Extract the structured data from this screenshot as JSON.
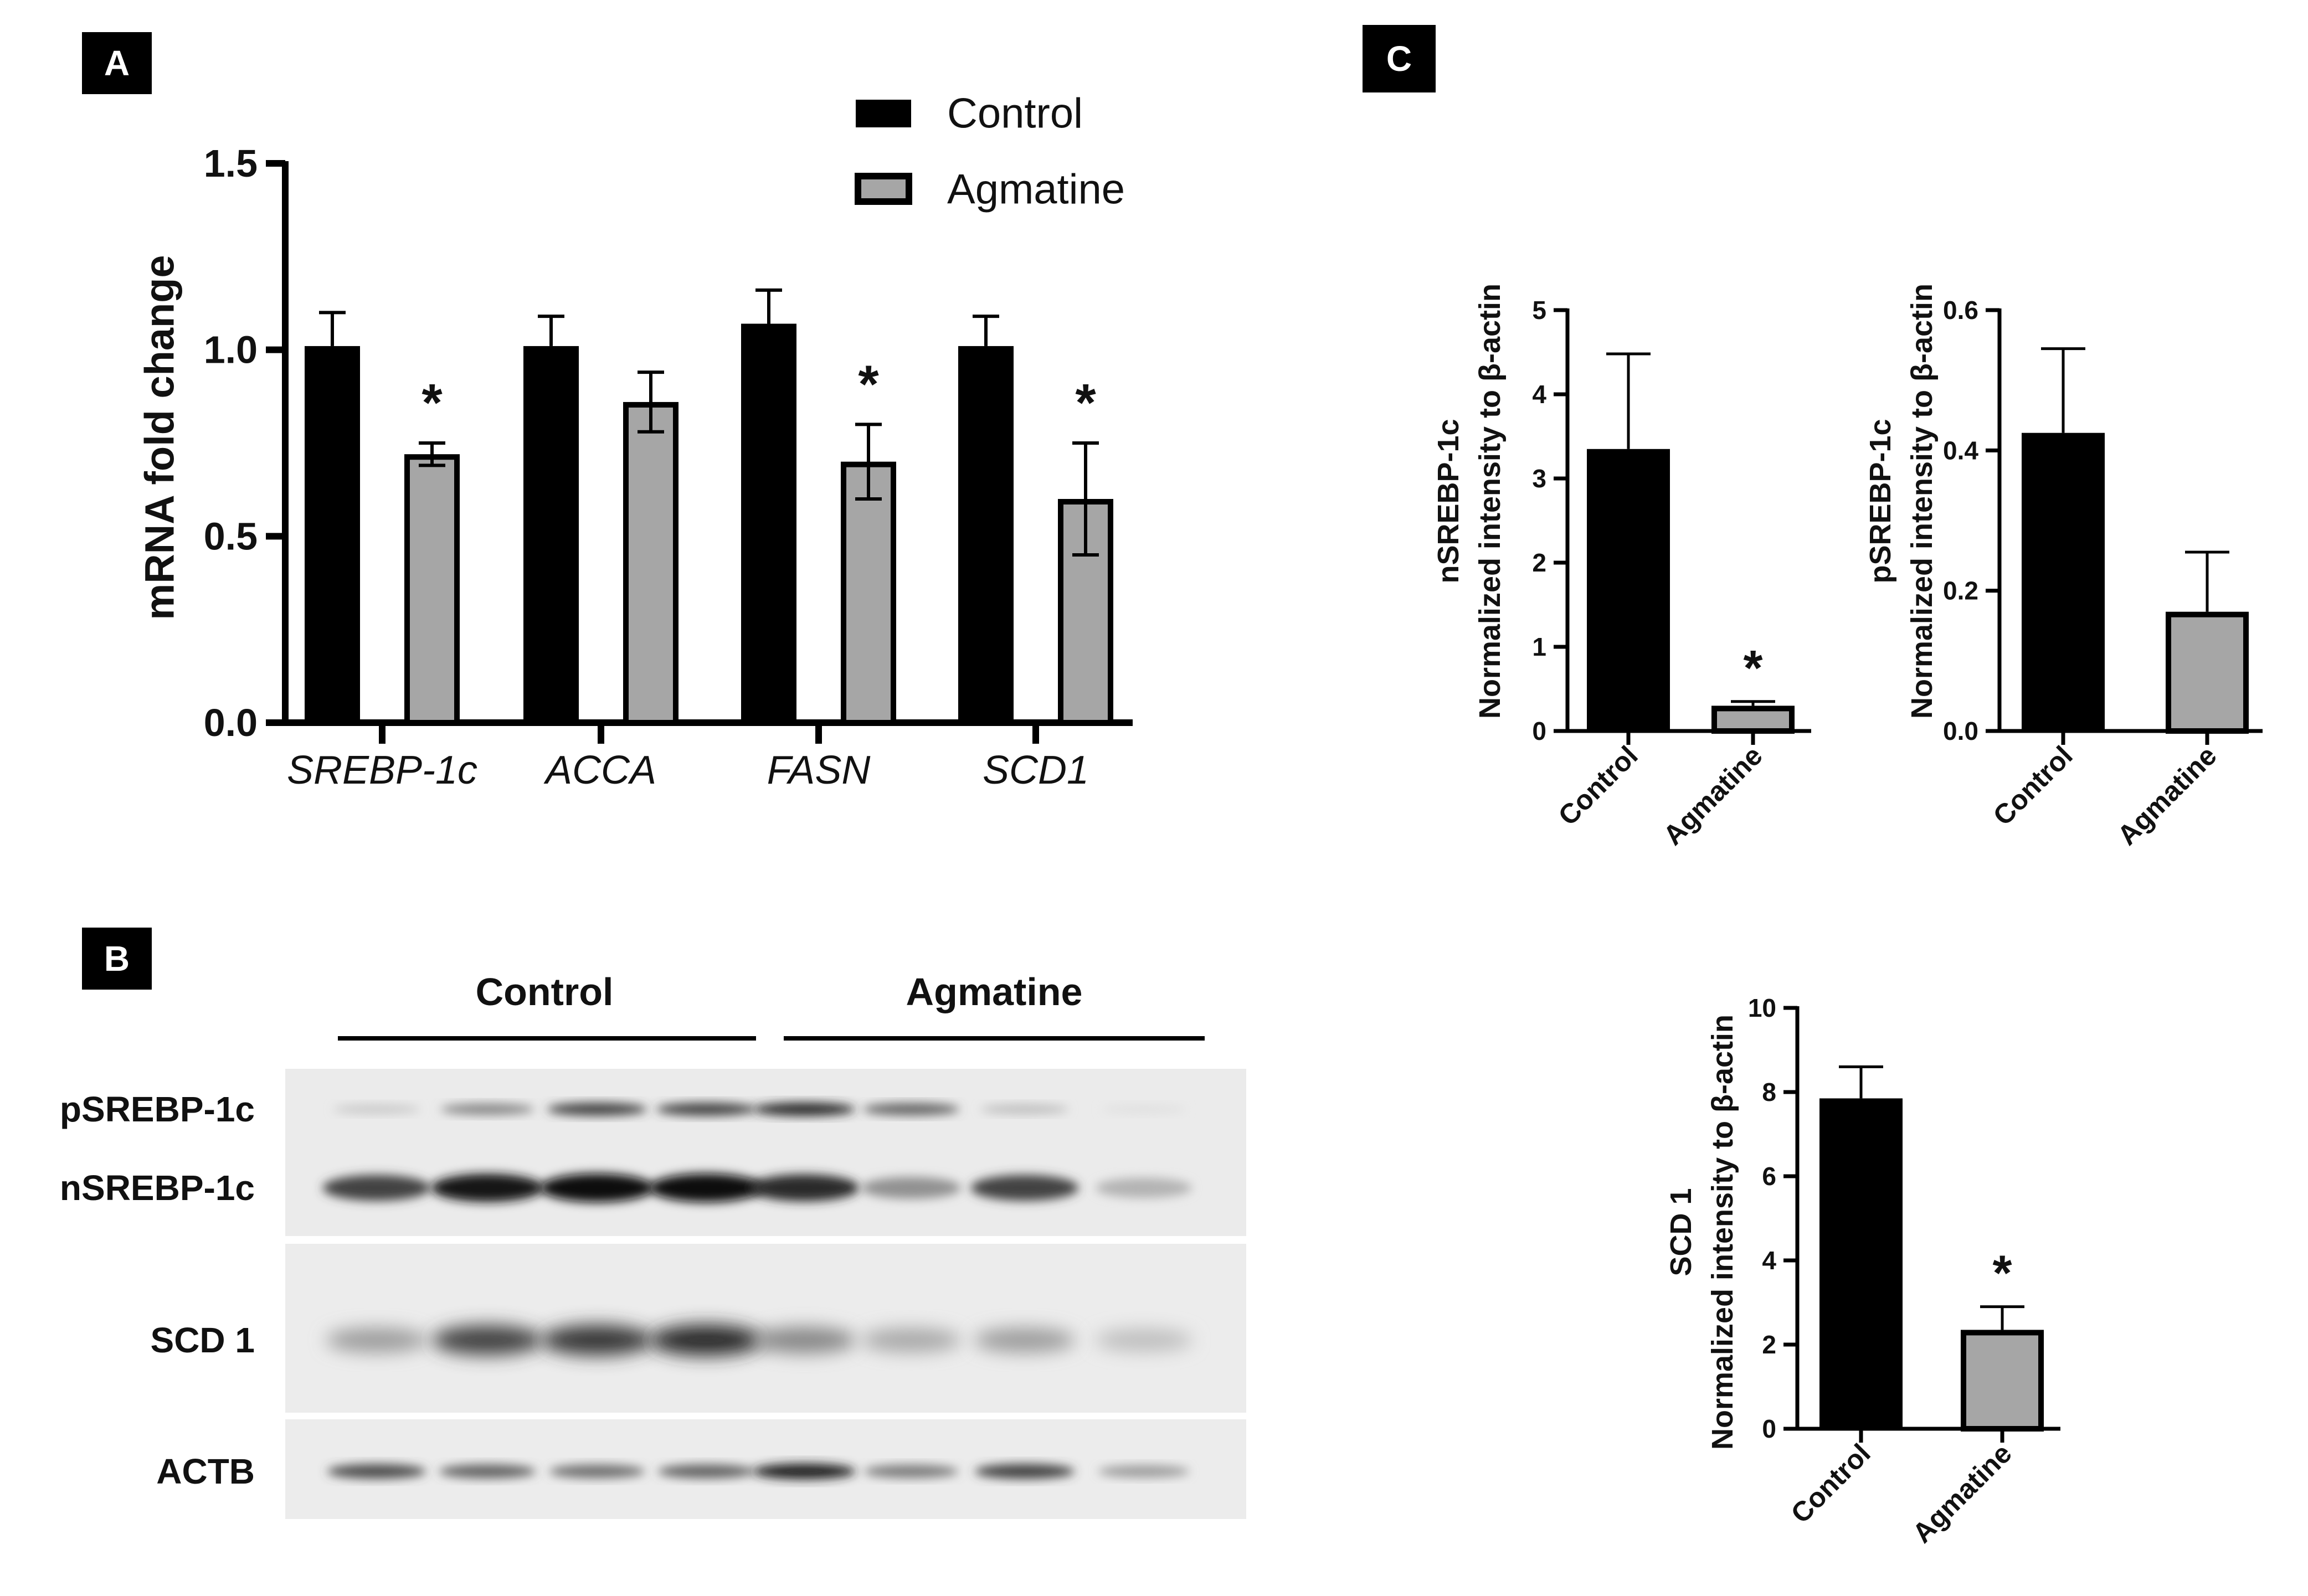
{
  "panels": {
    "a": {
      "letter": "A"
    },
    "b": {
      "letter": "B"
    },
    "c": {
      "letter": "C"
    }
  },
  "colors": {
    "control": "#000000",
    "agmatine": "#a6a6a6",
    "axis": "#000000"
  },
  "chart_data": [
    {
      "id": "panel-a",
      "type": "bar",
      "ylabel": "mRNA fold change",
      "ylim": [
        0,
        1.5
      ],
      "yticks": [
        "0.0",
        "0.5",
        "1.0",
        "1.5"
      ],
      "categories": [
        "SREBP-1c",
        "ACCA",
        "FASN",
        "SCD1"
      ],
      "series": [
        {
          "name": "Control",
          "values": [
            1.01,
            1.01,
            1.07,
            1.01
          ],
          "errors": [
            0.09,
            0.08,
            0.09,
            0.08
          ]
        },
        {
          "name": "Agmatine",
          "values": [
            0.72,
            0.86,
            0.7,
            0.6
          ],
          "errors": [
            0.03,
            0.08,
            0.1,
            0.15
          ]
        }
      ],
      "significance": [
        "*",
        "",
        "*",
        "*"
      ],
      "legend": "top-right"
    },
    {
      "id": "panel-c-nsrebp",
      "type": "bar",
      "ylabel_line1": "nSREBP-1c",
      "ylabel_line2": "Normalized intensity to β-actin",
      "ylim": [
        0,
        5
      ],
      "yticks": [
        "0",
        "1",
        "2",
        "3",
        "4",
        "5"
      ],
      "categories": [
        "Control",
        "Agmatine"
      ],
      "values": [
        3.35,
        0.3
      ],
      "errors": [
        1.13,
        0.05
      ],
      "significance": [
        "",
        "*"
      ]
    },
    {
      "id": "panel-c-psrebp",
      "type": "bar",
      "ylabel_line1": "pSREBP-1c",
      "ylabel_line2": "Normalized intensity to β-actin",
      "ylim": [
        0,
        0.6
      ],
      "yticks": [
        "0.0",
        "0.2",
        "0.4",
        "0.6"
      ],
      "categories": [
        "Control",
        "Agmatine"
      ],
      "values": [
        0.425,
        0.17
      ],
      "errors": [
        0.12,
        0.085
      ],
      "significance": [
        "",
        ""
      ]
    },
    {
      "id": "panel-c-scd1",
      "type": "bar",
      "ylabel_line1": "SCD 1",
      "ylabel_line2": "Normalized intensity to β-actin",
      "ylim": [
        0,
        10
      ],
      "yticks": [
        "0",
        "2",
        "4",
        "6",
        "8",
        "10"
      ],
      "categories": [
        "Control",
        "Agmatine"
      ],
      "values": [
        7.85,
        2.35
      ],
      "errors": [
        0.75,
        0.55
      ],
      "significance": [
        "",
        "*"
      ]
    }
  ],
  "western_blot": {
    "groups": [
      "Control",
      "Agmatine"
    ],
    "rows": [
      {
        "label": "pSREBP-1c",
        "band_intensity": [
          0.15,
          0.45,
          0.75,
          0.75,
          0.85,
          0.6,
          0.2,
          0.05
        ]
      },
      {
        "label": "nSREBP-1c",
        "band_intensity": [
          0.75,
          0.95,
          1.0,
          1.0,
          0.85,
          0.4,
          0.75,
          0.25
        ]
      },
      {
        "label": "SCD 1",
        "band_intensity": [
          0.35,
          0.75,
          0.8,
          0.85,
          0.45,
          0.3,
          0.35,
          0.2
        ]
      },
      {
        "label": "ACTB",
        "band_intensity": [
          0.7,
          0.6,
          0.55,
          0.6,
          0.9,
          0.5,
          0.75,
          0.35
        ]
      }
    ]
  }
}
